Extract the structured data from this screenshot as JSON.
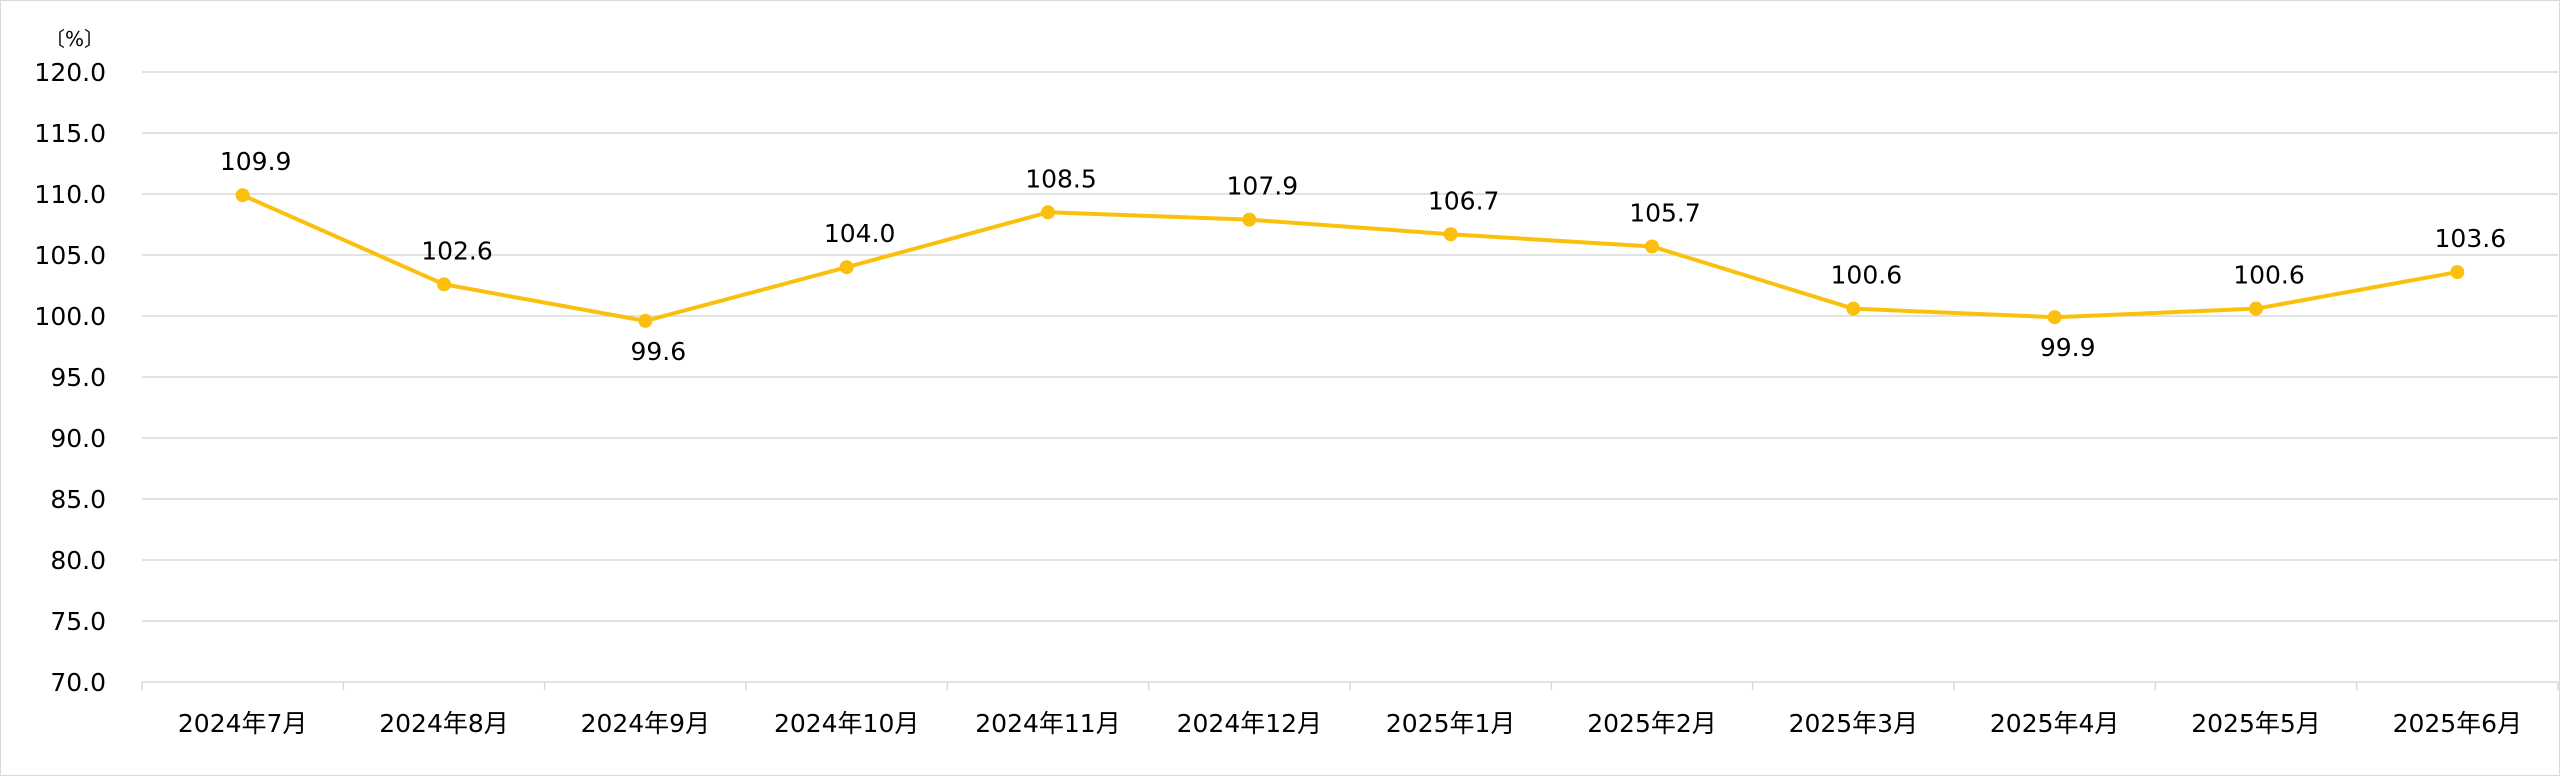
{
  "chart_data": {
    "type": "line",
    "title": "",
    "ylabel": "",
    "xlabel": "",
    "unit_label": "〔%〕",
    "categories": [
      "2024年7月",
      "2024年8月",
      "2024年9月",
      "2024年10月",
      "2024年11月",
      "2024年12月",
      "2025年1月",
      "2025年2月",
      "2025年3月",
      "2025年4月",
      "2025年5月",
      "2025年6月"
    ],
    "series": [
      {
        "values": [
          109.9,
          102.6,
          99.6,
          104.0,
          108.5,
          107.9,
          106.7,
          105.7,
          100.6,
          99.9,
          100.6,
          103.6
        ]
      }
    ],
    "data_labels": [
      "109.9",
      "102.6",
      "99.6",
      "104.0",
      "108.5",
      "107.9",
      "106.7",
      "105.7",
      "100.6",
      "99.9",
      "100.6",
      "103.6"
    ],
    "label_position": [
      "above",
      "above",
      "below",
      "above",
      "above",
      "above",
      "above",
      "above",
      "above",
      "below",
      "above",
      "above"
    ],
    "ylim": [
      70,
      120
    ],
    "yticks": [
      "70.0",
      "75.0",
      "80.0",
      "85.0",
      "90.0",
      "95.0",
      "100.0",
      "105.0",
      "110.0",
      "115.0",
      "120.0"
    ],
    "grid": true,
    "legend": "none",
    "line_color": "#FBC00E",
    "grid_color": "#d9d9d9"
  }
}
